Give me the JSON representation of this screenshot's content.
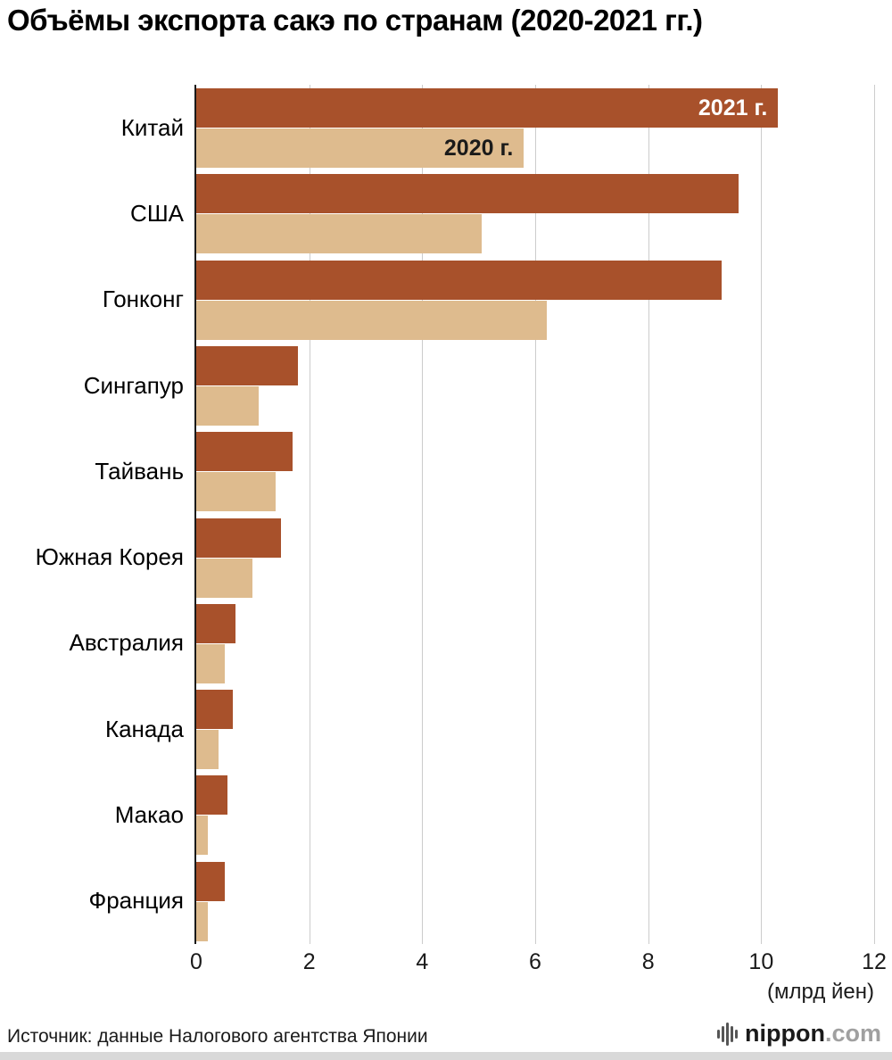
{
  "title": "Объёмы экспорта сакэ по странам (2020-2021 гг.)",
  "axis_note": "(млрд йен)",
  "source": "Источник: данные Налогового агентства Японии",
  "logo": {
    "name": "nippon",
    "tld": ".com"
  },
  "chart_data": {
    "type": "bar",
    "orientation": "horizontal",
    "title": "Объёмы экспорта сакэ по странам (2020-2021 гг.)",
    "xlabel": "(млрд йен)",
    "categories": [
      "Китай",
      "США",
      "Гонконг",
      "Сингапур",
      "Тайвань",
      "Южная Корея",
      "Австралия",
      "Канада",
      "Макао",
      "Франция"
    ],
    "series": [
      {
        "name": "2021 г.",
        "color": "#a8512b",
        "label_color": "#ffffff",
        "values": [
          10.3,
          9.6,
          9.3,
          1.8,
          1.7,
          1.5,
          0.7,
          0.65,
          0.55,
          0.5
        ]
      },
      {
        "name": "2020 г.",
        "color": "#debb8e",
        "label_color": "#1a1a1a",
        "values": [
          5.8,
          5.05,
          6.2,
          1.1,
          1.4,
          1.0,
          0.5,
          0.4,
          0.2,
          0.2
        ]
      }
    ],
    "xlim": [
      0,
      12
    ],
    "x_ticks": [
      0,
      2,
      4,
      6,
      8,
      10,
      12
    ],
    "grid": true,
    "legend_position": "inside-first-bars"
  }
}
